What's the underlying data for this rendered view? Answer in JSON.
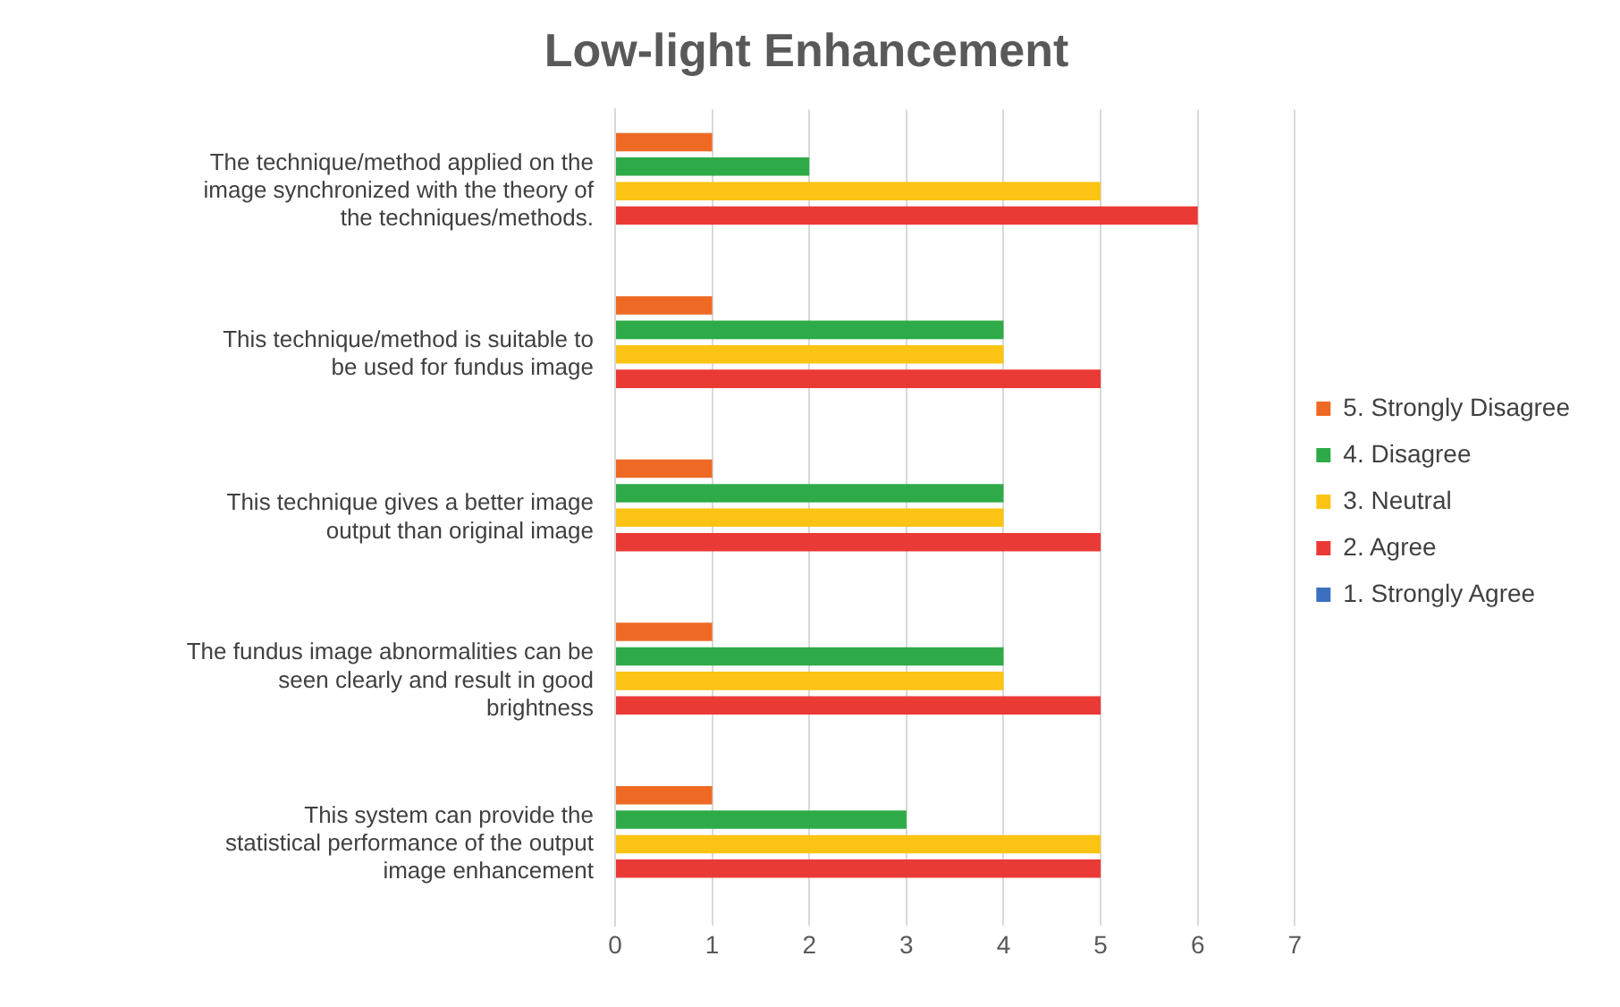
{
  "chart_data": {
    "type": "bar",
    "orientation": "horizontal",
    "title": "Low-light Enhancement",
    "categories": [
      "The technique/method applied on the image synchronized with the theory of the techniques/methods.",
      "This technique/method is suitable to be used for fundus image",
      "This technique gives a better image output than original image",
      "The fundus image abnormalities can be seen clearly and result in good brightness",
      "This system can provide the statistical performance of the output image enhancement"
    ],
    "series": [
      {
        "name": "5. Strongly Disagree",
        "color": "#ee6a24",
        "values": [
          1,
          1,
          1,
          1,
          1
        ]
      },
      {
        "name": "4. Disagree",
        "color": "#2eab48",
        "values": [
          2,
          4,
          4,
          4,
          3
        ]
      },
      {
        "name": "3. Neutral",
        "color": "#fbc313",
        "values": [
          5,
          4,
          4,
          4,
          5
        ]
      },
      {
        "name": "2. Agree",
        "color": "#ea3a36",
        "values": [
          6,
          5,
          5,
          5,
          5
        ]
      },
      {
        "name": "1. Strongly Agree",
        "color": "#3d6fc0",
        "values": [
          0,
          0,
          0,
          0,
          0
        ]
      }
    ],
    "xlim": [
      0,
      7
    ],
    "xticks": [
      0,
      1,
      2,
      3,
      4,
      5,
      6,
      7
    ],
    "grid": "x",
    "legend": "right"
  }
}
